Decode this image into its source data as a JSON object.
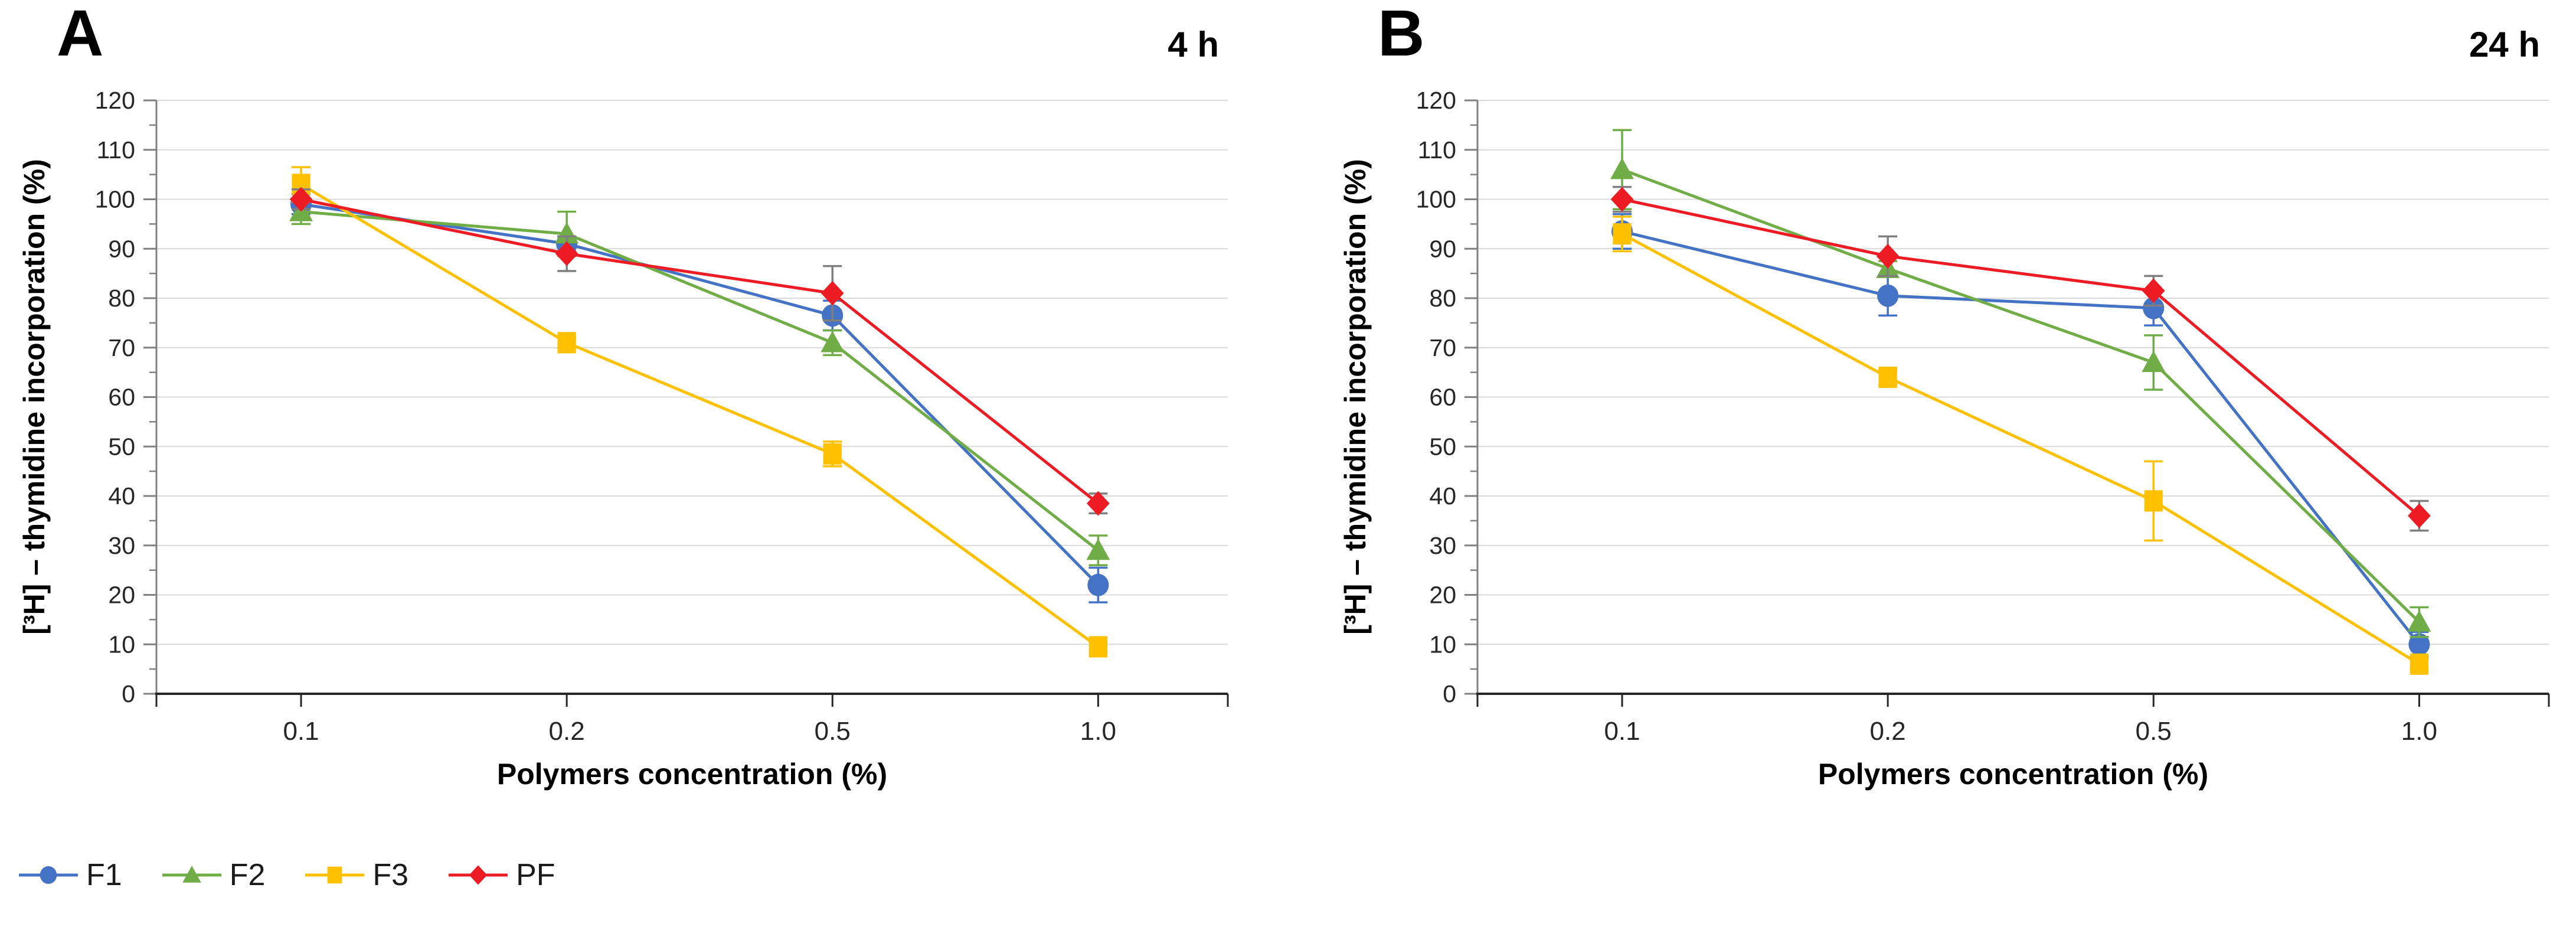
{
  "figure": {
    "background": "#ffffff",
    "panels": [
      {
        "label": "A",
        "time_label": "4 h",
        "xlabel": "Polymers concentration (%)",
        "ylabel": "[³H] – thymidine incorporation (%)"
      },
      {
        "label": "B",
        "time_label": "24 h",
        "xlabel": "Polymers concentration (%)",
        "ylabel": "[³H] – thymidine incorporation (%)"
      }
    ],
    "legend": [
      {
        "label": "F1",
        "marker": "circle",
        "color": "#4472C4"
      },
      {
        "label": "F2",
        "marker": "triangle",
        "color": "#70AD47"
      },
      {
        "label": "F3",
        "marker": "square",
        "color": "#FFC000"
      },
      {
        "label": "PF",
        "marker": "diamond",
        "color": "#ED1C24"
      }
    ],
    "colors": {
      "gridline": "#D9D9D9",
      "y_axis_line": "#808080",
      "x_axis_line": "#262626",
      "tick_text": "#262626",
      "error_gray": "#7F7F7F"
    }
  },
  "chart_data": [
    {
      "type": "line",
      "title": "4 h",
      "categories": [
        "0.1",
        "0.2",
        "0.5",
        "1.0"
      ],
      "xlabel": "Polymers concentration (%)",
      "ylabel": "[³H] – thymidine incorporation (%)",
      "ylim": [
        0,
        120
      ],
      "ytick_step": 10,
      "ytick_minor_step": 5,
      "grid": true,
      "legend_position": "bottom-left",
      "series": [
        {
          "name": "F1",
          "marker": "circle",
          "color": "#4472C4",
          "error_color": "#4472C4",
          "values": [
            99,
            91,
            76.5,
            22
          ],
          "errors": [
            2,
            1.5,
            3,
            3.5
          ]
        },
        {
          "name": "F2",
          "marker": "triangle",
          "color": "#70AD47",
          "error_color": "#70AD47",
          "values": [
            97.5,
            93,
            71,
            29
          ],
          "errors": [
            2.5,
            4.5,
            2.5,
            3
          ]
        },
        {
          "name": "F3",
          "marker": "square",
          "color": "#FFC000",
          "error_color": "#FFC000",
          "values": [
            103,
            71,
            48.5,
            9.5
          ],
          "errors": [
            3.5,
            1,
            2.5,
            1
          ]
        },
        {
          "name": "PF",
          "marker": "diamond",
          "color": "#ED1C24",
          "error_color": "#7F7F7F",
          "values": [
            100,
            89,
            81,
            38.5
          ],
          "errors": [
            2,
            3.5,
            5.5,
            2
          ]
        }
      ]
    },
    {
      "type": "line",
      "title": "24 h",
      "categories": [
        "0.1",
        "0.2",
        "0.5",
        "1.0"
      ],
      "xlabel": "Polymers concentration (%)",
      "ylabel": "[³H] – thymidine incorporation (%)",
      "ylim": [
        0,
        120
      ],
      "ytick_step": 10,
      "ytick_minor_step": 5,
      "grid": true,
      "legend_position": "bottom-left",
      "series": [
        {
          "name": "F1",
          "marker": "circle",
          "color": "#4472C4",
          "error_color": "#4472C4",
          "values": [
            93.5,
            80.5,
            78,
            10
          ],
          "errors": [
            3.5,
            4,
            3.5,
            2.5
          ]
        },
        {
          "name": "F2",
          "marker": "triangle",
          "color": "#70AD47",
          "error_color": "#70AD47",
          "values": [
            106,
            86,
            67,
            14.5
          ],
          "errors": [
            8,
            1.5,
            5.5,
            3
          ]
        },
        {
          "name": "F3",
          "marker": "square",
          "color": "#FFC000",
          "error_color": "#FFC000",
          "values": [
            93,
            64,
            39,
            6
          ],
          "errors": [
            3.5,
            1.5,
            8,
            1
          ]
        },
        {
          "name": "PF",
          "marker": "diamond",
          "color": "#ED1C24",
          "error_color": "#7F7F7F",
          "values": [
            100,
            88.5,
            81.5,
            36
          ],
          "errors": [
            2.5,
            4,
            3,
            3
          ]
        }
      ]
    }
  ]
}
